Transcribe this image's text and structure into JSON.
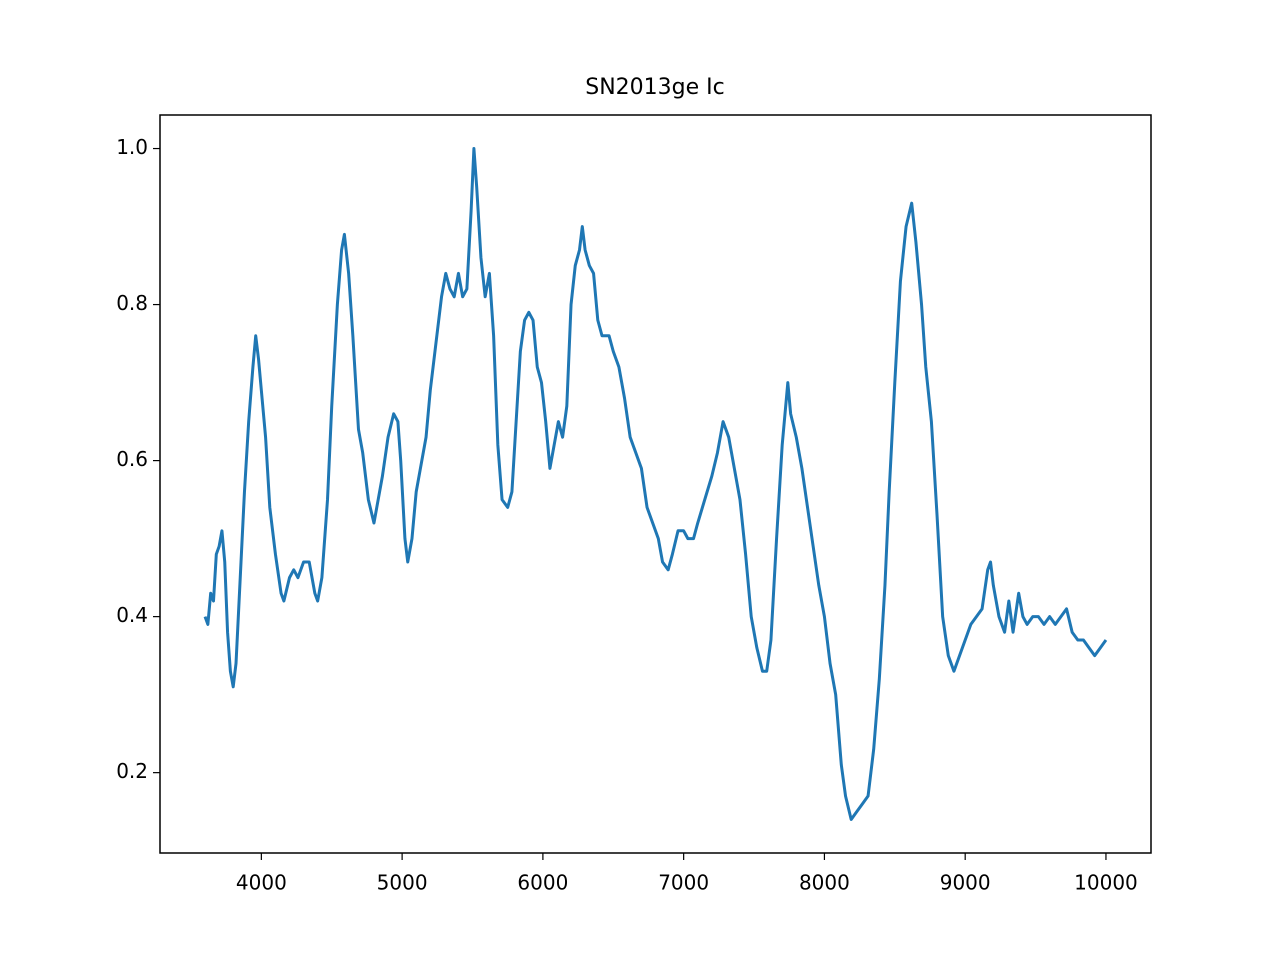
{
  "chart_data": {
    "type": "line",
    "title": "SN2013ge Ic",
    "x": [
      3600,
      3620,
      3640,
      3660,
      3680,
      3700,
      3720,
      3740,
      3760,
      3780,
      3800,
      3820,
      3850,
      3880,
      3910,
      3940,
      3960,
      3980,
      4000,
      4030,
      4060,
      4100,
      4140,
      4160,
      4200,
      4230,
      4260,
      4300,
      4340,
      4380,
      4400,
      4430,
      4470,
      4500,
      4540,
      4570,
      4590,
      4620,
      4650,
      4690,
      4720,
      4760,
      4800,
      4820,
      4860,
      4900,
      4940,
      4970,
      4990,
      5020,
      5040,
      5070,
      5100,
      5130,
      5170,
      5200,
      5240,
      5280,
      5310,
      5340,
      5370,
      5400,
      5430,
      5460,
      5490,
      5510,
      5530,
      5560,
      5590,
      5620,
      5650,
      5680,
      5710,
      5750,
      5780,
      5800,
      5840,
      5870,
      5900,
      5930,
      5960,
      5990,
      6020,
      6050,
      6080,
      6110,
      6140,
      6170,
      6200,
      6230,
      6260,
      6280,
      6300,
      6330,
      6360,
      6390,
      6420,
      6470,
      6500,
      6540,
      6580,
      6620,
      6660,
      6700,
      6740,
      6780,
      6820,
      6850,
      6890,
      6920,
      6960,
      7000,
      7030,
      7070,
      7100,
      7150,
      7200,
      7240,
      7280,
      7320,
      7360,
      7400,
      7440,
      7480,
      7520,
      7560,
      7590,
      7620,
      7660,
      7700,
      7740,
      7760,
      7800,
      7840,
      7880,
      7920,
      7960,
      8000,
      8040,
      8080,
      8120,
      8150,
      8190,
      8230,
      8270,
      8310,
      8350,
      8390,
      8430,
      8460,
      8500,
      8540,
      8580,
      8620,
      8650,
      8690,
      8720,
      8760,
      8800,
      8840,
      8880,
      8920,
      8960,
      9000,
      9040,
      9080,
      9120,
      9160,
      9180,
      9200,
      9240,
      9280,
      9310,
      9340,
      9380,
      9410,
      9440,
      9480,
      9520,
      9560,
      9600,
      9640,
      9680,
      9720,
      9760,
      9800,
      9840,
      9880,
      9920,
      9960,
      10000
    ],
    "series": [
      {
        "color": "#1f77b4",
        "values": [
          0.4,
          0.39,
          0.43,
          0.42,
          0.48,
          0.49,
          0.51,
          0.47,
          0.38,
          0.33,
          0.31,
          0.34,
          0.45,
          0.56,
          0.65,
          0.72,
          0.76,
          0.73,
          0.69,
          0.63,
          0.54,
          0.48,
          0.43,
          0.42,
          0.45,
          0.46,
          0.45,
          0.47,
          0.47,
          0.43,
          0.42,
          0.45,
          0.55,
          0.67,
          0.8,
          0.87,
          0.89,
          0.84,
          0.76,
          0.64,
          0.61,
          0.55,
          0.52,
          0.54,
          0.58,
          0.63,
          0.66,
          0.65,
          0.6,
          0.5,
          0.47,
          0.5,
          0.56,
          0.59,
          0.63,
          0.69,
          0.75,
          0.81,
          0.84,
          0.82,
          0.81,
          0.84,
          0.81,
          0.82,
          0.92,
          1.0,
          0.95,
          0.86,
          0.81,
          0.84,
          0.76,
          0.62,
          0.55,
          0.54,
          0.56,
          0.62,
          0.74,
          0.78,
          0.79,
          0.78,
          0.72,
          0.7,
          0.65,
          0.59,
          0.62,
          0.65,
          0.63,
          0.67,
          0.8,
          0.85,
          0.87,
          0.9,
          0.87,
          0.85,
          0.84,
          0.78,
          0.76,
          0.76,
          0.74,
          0.72,
          0.68,
          0.63,
          0.61,
          0.59,
          0.54,
          0.52,
          0.5,
          0.47,
          0.46,
          0.48,
          0.51,
          0.51,
          0.5,
          0.5,
          0.52,
          0.55,
          0.58,
          0.61,
          0.65,
          0.63,
          0.59,
          0.55,
          0.48,
          0.4,
          0.36,
          0.33,
          0.33,
          0.37,
          0.5,
          0.62,
          0.7,
          0.66,
          0.63,
          0.59,
          0.54,
          0.49,
          0.44,
          0.4,
          0.34,
          0.3,
          0.21,
          0.17,
          0.14,
          0.15,
          0.16,
          0.17,
          0.23,
          0.32,
          0.44,
          0.56,
          0.7,
          0.83,
          0.9,
          0.93,
          0.88,
          0.8,
          0.72,
          0.65,
          0.53,
          0.4,
          0.35,
          0.33,
          0.35,
          0.37,
          0.39,
          0.4,
          0.41,
          0.46,
          0.47,
          0.44,
          0.4,
          0.38,
          0.42,
          0.38,
          0.43,
          0.4,
          0.39,
          0.4,
          0.4,
          0.39,
          0.4,
          0.39,
          0.4,
          0.41,
          0.38,
          0.37,
          0.37,
          0.36,
          0.35,
          0.36,
          0.37
        ]
      }
    ],
    "xlim": [
      3280,
      10320
    ],
    "xticks": [
      4000,
      5000,
      6000,
      7000,
      8000,
      9000,
      10000
    ],
    "ylim": [
      0.097,
      1.043
    ],
    "yticks": [
      0.2,
      0.4,
      0.6,
      0.8,
      {
        "value": 1,
        "label": "1.0"
      }
    ]
  }
}
